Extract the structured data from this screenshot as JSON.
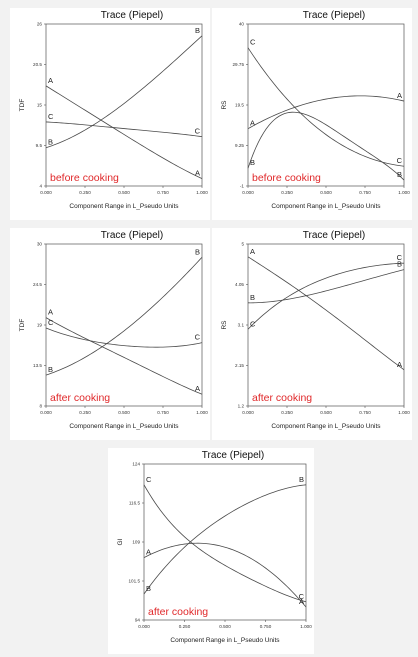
{
  "figure": {
    "background": "#f2f2f2",
    "curve_color": "#4a4a4a",
    "annotation_color": "#e0282a"
  },
  "chart_data": [
    {
      "type": "line",
      "title": "Trace (Piepel)",
      "xlabel": "Component Range in L_Pseudo Units",
      "ylabel": "TDF",
      "xlim": [
        0,
        1
      ],
      "ylim": [
        4,
        26
      ],
      "x_ticks": [
        "0.000",
        "0.250",
        "0.500",
        "0.750",
        "1.000"
      ],
      "y_ticks": [
        "4",
        "9.5",
        "15",
        "20.5",
        "26"
      ],
      "annotation": "before cooking",
      "series": [
        {
          "name": "A",
          "x": [
            0,
            0.25,
            0.5,
            0.75,
            1
          ],
          "y": [
            17.6,
            14.3,
            11.0,
            7.8,
            5.0
          ]
        },
        {
          "name": "B",
          "x": [
            0,
            0.25,
            0.5,
            0.75,
            1
          ],
          "y": [
            9.2,
            11.6,
            15.2,
            19.6,
            24.4
          ]
        },
        {
          "name": "C",
          "x": [
            0,
            0.25,
            0.5,
            0.75,
            1
          ],
          "y": [
            12.7,
            12.3,
            11.8,
            11.3,
            10.7
          ]
        }
      ]
    },
    {
      "type": "line",
      "title": "Trace (Piepel)",
      "xlabel": "Component Range in L_Pseudo Units",
      "ylabel": "RS",
      "xlim": [
        0,
        1
      ],
      "ylim": [
        -1,
        40
      ],
      "x_ticks": [
        "0.000",
        "0.250",
        "0.500",
        "0.750",
        "1.000"
      ],
      "y_ticks": [
        "-1",
        "9.25",
        "19.5",
        "29.75",
        "40"
      ],
      "annotation": "before cooking",
      "series": [
        {
          "name": "A",
          "x": [
            0,
            0.25,
            0.5,
            0.75,
            1
          ],
          "y": [
            13.5,
            18.2,
            21.0,
            21.8,
            20.5
          ]
        },
        {
          "name": "B",
          "x": [
            0,
            0.25,
            0.5,
            0.75,
            1
          ],
          "y": [
            3.5,
            17.5,
            14.5,
            8.0,
            0.5
          ]
        },
        {
          "name": "C",
          "x": [
            0,
            0.25,
            0.5,
            0.75,
            1
          ],
          "y": [
            34.0,
            21.0,
            12.0,
            6.5,
            4.0
          ]
        }
      ]
    },
    {
      "type": "line",
      "title": "Trace (Piepel)",
      "xlabel": "Component Range in L_Pseudo Units",
      "ylabel": "TDF",
      "xlim": [
        0,
        1
      ],
      "ylim": [
        8,
        30
      ],
      "x_ticks": [
        "0.000",
        "0.250",
        "0.500",
        "0.750",
        "1.000"
      ],
      "y_ticks": [
        "8",
        "13.5",
        "19",
        "24.5",
        "30"
      ],
      "annotation": "after cooking",
      "series": [
        {
          "name": "A",
          "x": [
            0,
            0.25,
            0.5,
            0.75,
            1
          ],
          "y": [
            20.0,
            17.2,
            14.6,
            12.0,
            9.6
          ]
        },
        {
          "name": "B",
          "x": [
            0,
            0.25,
            0.5,
            0.75,
            1
          ],
          "y": [
            12.2,
            14.6,
            18.2,
            22.8,
            28.2
          ]
        },
        {
          "name": "C",
          "x": [
            0,
            0.25,
            0.5,
            0.75,
            1
          ],
          "y": [
            18.6,
            17.0,
            16.2,
            16.0,
            16.6
          ]
        }
      ]
    },
    {
      "type": "line",
      "title": "Trace (Piepel)",
      "xlabel": "Component Range in L_Pseudo Units",
      "ylabel": "RS",
      "xlim": [
        0,
        1
      ],
      "ylim": [
        1.2,
        5
      ],
      "x_ticks": [
        "0.000",
        "0.250",
        "0.500",
        "0.750",
        "1.000"
      ],
      "y_ticks": [
        "1.2",
        "2.15",
        "3.1",
        "4.05",
        "5"
      ],
      "annotation": "after cooking",
      "series": [
        {
          "name": "A",
          "x": [
            0,
            0.25,
            0.5,
            0.75,
            1
          ],
          "y": [
            4.7,
            4.1,
            3.45,
            2.75,
            2.05
          ]
        },
        {
          "name": "B",
          "x": [
            0,
            0.25,
            0.5,
            0.75,
            1
          ],
          "y": [
            3.62,
            3.7,
            3.9,
            4.15,
            4.4
          ]
        },
        {
          "name": "C",
          "x": [
            0,
            0.25,
            0.5,
            0.75,
            1
          ],
          "y": [
            3.0,
            3.75,
            4.2,
            4.45,
            4.55
          ]
        }
      ]
    },
    {
      "type": "line",
      "title": "Trace (Piepel)",
      "xlabel": "Component Range in L_Pseudo Units",
      "ylabel": "GI",
      "xlim": [
        0,
        1
      ],
      "ylim": [
        94,
        124
      ],
      "x_ticks": [
        "0.000",
        "0.250",
        "0.500",
        "0.750",
        "1.000"
      ],
      "y_ticks": [
        "94",
        "101.5",
        "109",
        "116.5",
        "124"
      ],
      "annotation": "after cooking",
      "series": [
        {
          "name": "A",
          "x": [
            0,
            0.25,
            0.5,
            0.75,
            1
          ],
          "y": [
            106.0,
            108.6,
            108.0,
            104.0,
            96.5
          ]
        },
        {
          "name": "B",
          "x": [
            0,
            0.25,
            0.5,
            0.75,
            1
          ],
          "y": [
            99.0,
            108.0,
            114.0,
            118.0,
            120.0
          ]
        },
        {
          "name": "C",
          "x": [
            0,
            0.25,
            0.5,
            0.75,
            1
          ],
          "y": [
            120.0,
            110.0,
            104.5,
            100.5,
            97.5
          ]
        }
      ]
    }
  ]
}
